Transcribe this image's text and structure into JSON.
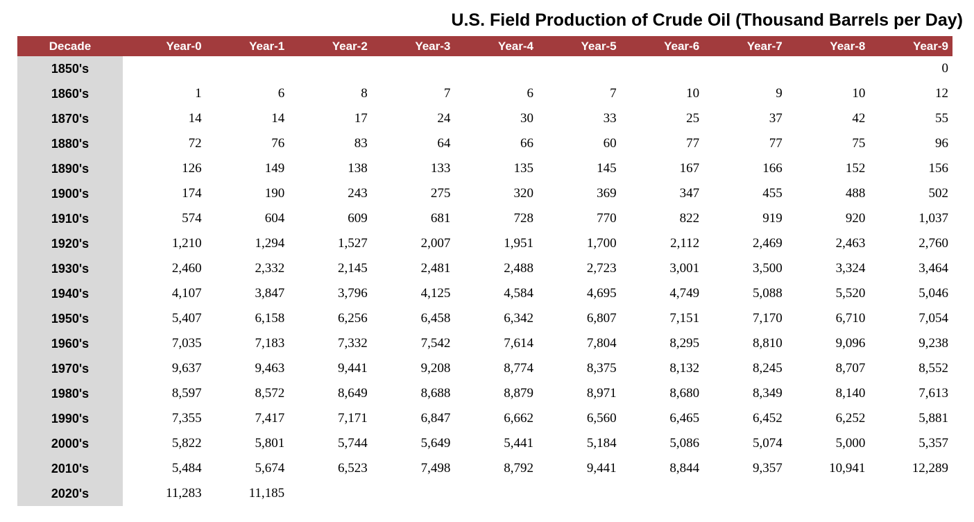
{
  "title": "U.S. Field Production of Crude Oil (Thousand Barrels per Day)",
  "colors": {
    "header_bg": "#A23B3D",
    "header_text": "#FFFFFF",
    "decade_column_bg": "#D9D9D9",
    "body_text": "#000000",
    "page_bg": "#FFFFFF"
  },
  "chart_data": {
    "type": "table",
    "title": "U.S. Field Production of Crude Oil (Thousand Barrels per Day)",
    "units": "Thousand Barrels per Day",
    "columns": [
      "Decade",
      "Year-0",
      "Year-1",
      "Year-2",
      "Year-3",
      "Year-4",
      "Year-5",
      "Year-6",
      "Year-7",
      "Year-8",
      "Year-9"
    ],
    "rows": [
      {
        "decade": "1850's",
        "values": [
          "",
          "",
          "",
          "",
          "",
          "",
          "",
          "",
          "",
          "0"
        ]
      },
      {
        "decade": "1860's",
        "values": [
          "1",
          "6",
          "8",
          "7",
          "6",
          "7",
          "10",
          "9",
          "10",
          "12"
        ]
      },
      {
        "decade": "1870's",
        "values": [
          "14",
          "14",
          "17",
          "24",
          "30",
          "33",
          "25",
          "37",
          "42",
          "55"
        ]
      },
      {
        "decade": "1880's",
        "values": [
          "72",
          "76",
          "83",
          "64",
          "66",
          "60",
          "77",
          "77",
          "75",
          "96"
        ]
      },
      {
        "decade": "1890's",
        "values": [
          "126",
          "149",
          "138",
          "133",
          "135",
          "145",
          "167",
          "166",
          "152",
          "156"
        ]
      },
      {
        "decade": "1900's",
        "values": [
          "174",
          "190",
          "243",
          "275",
          "320",
          "369",
          "347",
          "455",
          "488",
          "502"
        ]
      },
      {
        "decade": "1910's",
        "values": [
          "574",
          "604",
          "609",
          "681",
          "728",
          "770",
          "822",
          "919",
          "920",
          "1,037"
        ]
      },
      {
        "decade": "1920's",
        "values": [
          "1,210",
          "1,294",
          "1,527",
          "2,007",
          "1,951",
          "1,700",
          "2,112",
          "2,469",
          "2,463",
          "2,760"
        ]
      },
      {
        "decade": "1930's",
        "values": [
          "2,460",
          "2,332",
          "2,145",
          "2,481",
          "2,488",
          "2,723",
          "3,001",
          "3,500",
          "3,324",
          "3,464"
        ]
      },
      {
        "decade": "1940's",
        "values": [
          "4,107",
          "3,847",
          "3,796",
          "4,125",
          "4,584",
          "4,695",
          "4,749",
          "5,088",
          "5,520",
          "5,046"
        ]
      },
      {
        "decade": "1950's",
        "values": [
          "5,407",
          "6,158",
          "6,256",
          "6,458",
          "6,342",
          "6,807",
          "7,151",
          "7,170",
          "6,710",
          "7,054"
        ]
      },
      {
        "decade": "1960's",
        "values": [
          "7,035",
          "7,183",
          "7,332",
          "7,542",
          "7,614",
          "7,804",
          "8,295",
          "8,810",
          "9,096",
          "9,238"
        ]
      },
      {
        "decade": "1970's",
        "values": [
          "9,637",
          "9,463",
          "9,441",
          "9,208",
          "8,774",
          "8,375",
          "8,132",
          "8,245",
          "8,707",
          "8,552"
        ]
      },
      {
        "decade": "1980's",
        "values": [
          "8,597",
          "8,572",
          "8,649",
          "8,688",
          "8,879",
          "8,971",
          "8,680",
          "8,349",
          "8,140",
          "7,613"
        ]
      },
      {
        "decade": "1990's",
        "values": [
          "7,355",
          "7,417",
          "7,171",
          "6,847",
          "6,662",
          "6,560",
          "6,465",
          "6,452",
          "6,252",
          "5,881"
        ]
      },
      {
        "decade": "2000's",
        "values": [
          "5,822",
          "5,801",
          "5,744",
          "5,649",
          "5,441",
          "5,184",
          "5,086",
          "5,074",
          "5,000",
          "5,357"
        ]
      },
      {
        "decade": "2010's",
        "values": [
          "5,484",
          "5,674",
          "6,523",
          "7,498",
          "8,792",
          "9,441",
          "8,844",
          "9,357",
          "10,941",
          "12,289"
        ]
      },
      {
        "decade": "2020's",
        "values": [
          "11,283",
          "11,185",
          "",
          "",
          "",
          "",
          "",
          "",
          "",
          ""
        ]
      }
    ]
  }
}
